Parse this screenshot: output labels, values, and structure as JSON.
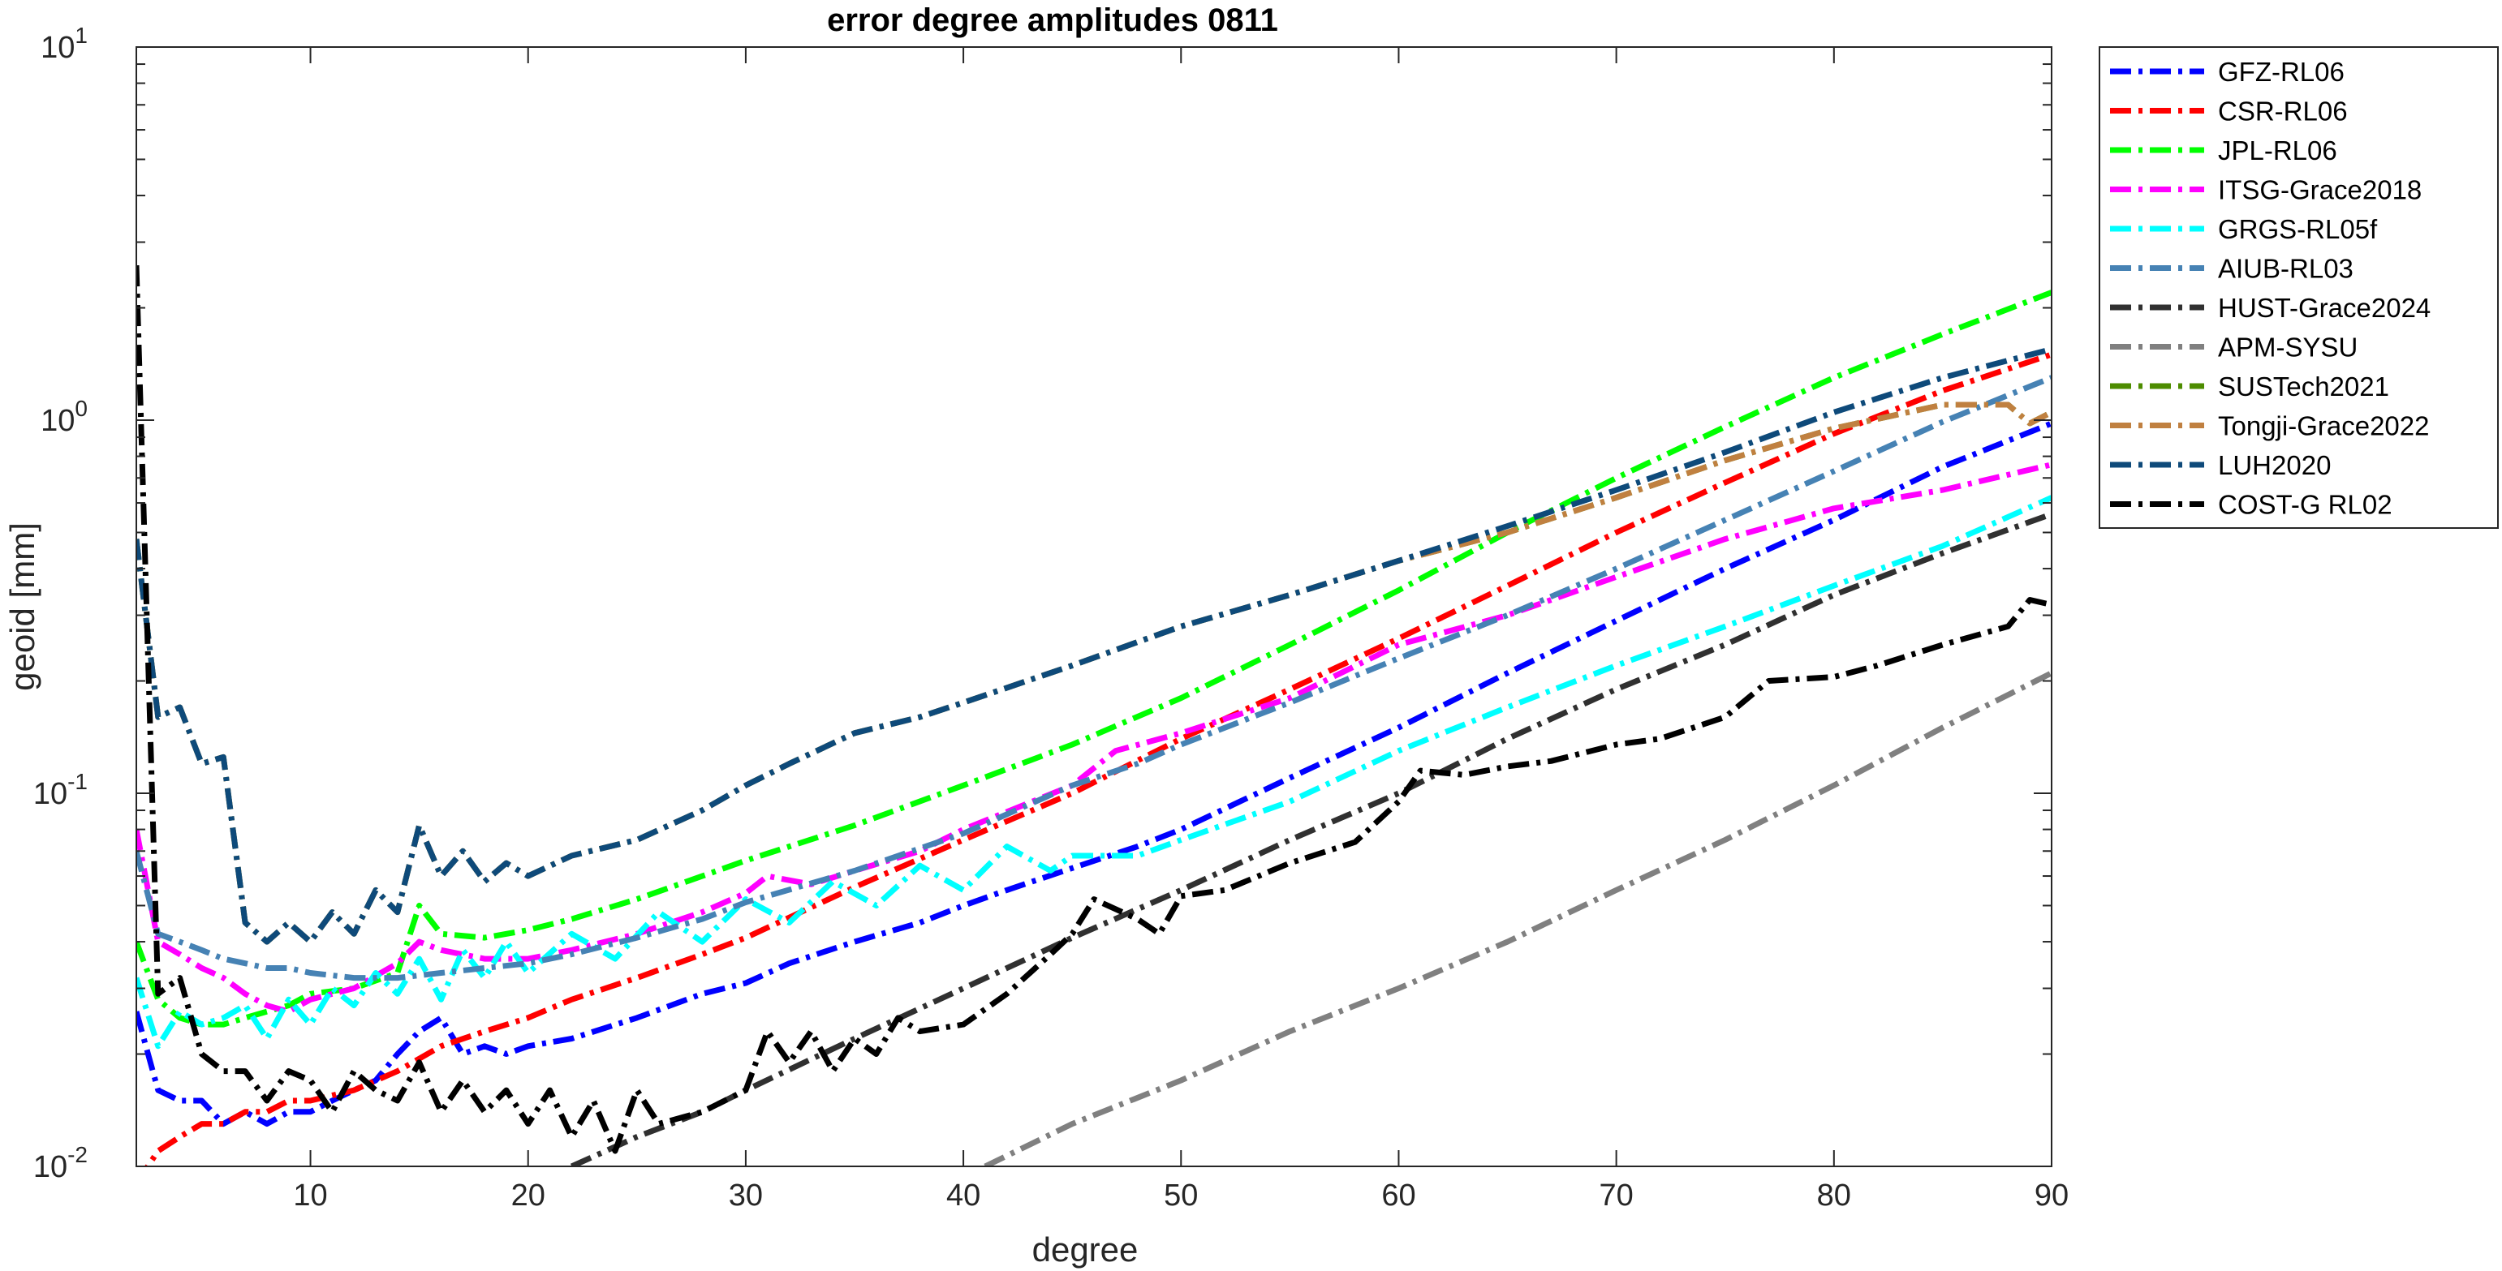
{
  "chart_data": {
    "type": "line",
    "title": "error degree amplitudes 0811",
    "xlabel": "degree",
    "ylabel": "geoid [mm]",
    "xlim": [
      2,
      90
    ],
    "ylim": [
      0.01,
      10
    ],
    "yscale": "log",
    "grid": false,
    "legend_position": "outside-right-top",
    "x_ticks": [
      10,
      20,
      30,
      40,
      50,
      60,
      70,
      80,
      90
    ],
    "x_tick_labels": [
      "10",
      "20",
      "30",
      "40",
      "50",
      "60",
      "70",
      "80",
      "90"
    ],
    "y_ticks": [
      0.01,
      0.1,
      1,
      10
    ],
    "y_tick_bases": [
      "10",
      "10",
      "10",
      "10"
    ],
    "y_tick_exponents": [
      "-2",
      "-1",
      "0",
      "1"
    ],
    "series": [
      {
        "name": "GFZ-RL06",
        "color": "#0000ff",
        "x": [
          2,
          3,
          4,
          5,
          6,
          7,
          8,
          9,
          10,
          11,
          12,
          13,
          14,
          15,
          16,
          17,
          18,
          19,
          20,
          22,
          25,
          28,
          30,
          32,
          35,
          38,
          40,
          42,
          45,
          48,
          50,
          55,
          60,
          65,
          70,
          75,
          80,
          85,
          90
        ],
        "y": [
          0.026,
          0.016,
          0.015,
          0.015,
          0.013,
          0.014,
          0.013,
          0.014,
          0.014,
          0.015,
          0.016,
          0.017,
          0.02,
          0.023,
          0.025,
          0.02,
          0.021,
          0.02,
          0.021,
          0.022,
          0.025,
          0.029,
          0.031,
          0.035,
          0.04,
          0.045,
          0.05,
          0.055,
          0.063,
          0.072,
          0.08,
          0.11,
          0.15,
          0.21,
          0.29,
          0.4,
          0.54,
          0.75,
          0.98
        ]
      },
      {
        "name": "CSR-RL06",
        "color": "#ff0000",
        "x": [
          2,
          3,
          4,
          5,
          6,
          7,
          8,
          9,
          10,
          12,
          14,
          16,
          18,
          20,
          22,
          25,
          28,
          30,
          35,
          40,
          45,
          50,
          55,
          60,
          65,
          70,
          75,
          80,
          85,
          90
        ],
        "y": [
          0.009,
          0.011,
          0.012,
          0.013,
          0.013,
          0.014,
          0.014,
          0.015,
          0.015,
          0.016,
          0.018,
          0.021,
          0.023,
          0.025,
          0.028,
          0.032,
          0.037,
          0.041,
          0.056,
          0.075,
          0.1,
          0.14,
          0.19,
          0.26,
          0.36,
          0.5,
          0.68,
          0.92,
          1.2,
          1.5
        ]
      },
      {
        "name": "JPL-RL06",
        "color": "#00ff00",
        "x": [
          2,
          3,
          4,
          5,
          6,
          7,
          8,
          9,
          10,
          12,
          14,
          15,
          16,
          18,
          20,
          22,
          25,
          28,
          30,
          35,
          40,
          45,
          50,
          55,
          60,
          65,
          70,
          75,
          80,
          85,
          90
        ],
        "y": [
          0.04,
          0.028,
          0.025,
          0.024,
          0.024,
          0.025,
          0.026,
          0.027,
          0.029,
          0.03,
          0.033,
          0.05,
          0.042,
          0.041,
          0.043,
          0.046,
          0.052,
          0.06,
          0.066,
          0.082,
          0.105,
          0.135,
          0.18,
          0.25,
          0.35,
          0.5,
          0.7,
          0.96,
          1.3,
          1.7,
          2.2
        ]
      },
      {
        "name": "ITSG-Grace2018",
        "color": "#ff00ff",
        "x": [
          2,
          3,
          4,
          5,
          6,
          7,
          8,
          9,
          10,
          12,
          14,
          15,
          16,
          18,
          20,
          22,
          25,
          28,
          30,
          31,
          33,
          35,
          38,
          40,
          45,
          47,
          50,
          55,
          60,
          65,
          70,
          75,
          80,
          85,
          90
        ],
        "y": [
          0.08,
          0.04,
          0.037,
          0.034,
          0.032,
          0.029,
          0.027,
          0.026,
          0.028,
          0.03,
          0.035,
          0.04,
          0.038,
          0.036,
          0.036,
          0.038,
          0.042,
          0.048,
          0.054,
          0.06,
          0.057,
          0.062,
          0.07,
          0.08,
          0.105,
          0.13,
          0.145,
          0.18,
          0.25,
          0.3,
          0.38,
          0.48,
          0.58,
          0.65,
          0.76
        ]
      },
      {
        "name": "GRGS-RL05f",
        "color": "#00ffff",
        "x": [
          2,
          3,
          4,
          5,
          6,
          7,
          8,
          9,
          10,
          11,
          12,
          13,
          14,
          15,
          16,
          17,
          18,
          19,
          20,
          22,
          24,
          26,
          28,
          30,
          32,
          34,
          36,
          38,
          40,
          42,
          44,
          45,
          48,
          50,
          55,
          60,
          65,
          70,
          75,
          80,
          85,
          90
        ],
        "y": [
          0.032,
          0.021,
          0.026,
          0.024,
          0.025,
          0.027,
          0.022,
          0.028,
          0.024,
          0.03,
          0.027,
          0.033,
          0.029,
          0.036,
          0.028,
          0.038,
          0.032,
          0.04,
          0.033,
          0.042,
          0.036,
          0.048,
          0.04,
          0.052,
          0.045,
          0.058,
          0.05,
          0.064,
          0.055,
          0.072,
          0.062,
          0.068,
          0.068,
          0.075,
          0.095,
          0.13,
          0.17,
          0.22,
          0.28,
          0.36,
          0.46,
          0.62
        ]
      },
      {
        "name": "AIUB-RL03",
        "color": "#4682b4",
        "x": [
          2,
          3,
          4,
          5,
          6,
          7,
          8,
          9,
          10,
          12,
          14,
          16,
          18,
          20,
          22,
          25,
          28,
          30,
          35,
          40,
          45,
          48,
          50,
          55,
          60,
          65,
          70,
          75,
          80,
          85,
          90
        ],
        "y": [
          0.07,
          0.042,
          0.04,
          0.038,
          0.036,
          0.035,
          0.034,
          0.034,
          0.033,
          0.032,
          0.032,
          0.033,
          0.034,
          0.035,
          0.037,
          0.041,
          0.046,
          0.051,
          0.062,
          0.078,
          0.105,
          0.12,
          0.135,
          0.175,
          0.23,
          0.3,
          0.4,
          0.54,
          0.73,
          0.99,
          1.3
        ]
      },
      {
        "name": "HUST-Grace2024",
        "color": "#303030",
        "x": [
          22,
          25,
          28,
          30,
          35,
          40,
          45,
          50,
          55,
          60,
          65,
          70,
          75,
          80,
          85,
          90
        ],
        "y": [
          0.01,
          0.012,
          0.014,
          0.016,
          0.022,
          0.03,
          0.041,
          0.055,
          0.075,
          0.1,
          0.14,
          0.19,
          0.25,
          0.34,
          0.44,
          0.56
        ]
      },
      {
        "name": "APM-SYSU",
        "color": "#808080",
        "x": [
          41,
          45,
          50,
          55,
          60,
          65,
          70,
          75,
          80,
          85,
          90
        ],
        "y": [
          0.01,
          0.013,
          0.017,
          0.023,
          0.03,
          0.04,
          0.055,
          0.075,
          0.105,
          0.15,
          0.21
        ]
      },
      {
        "name": "SUSTech2021",
        "color": "#4d8c00",
        "x": [
          2,
          3,
          4,
          5,
          6,
          7,
          8,
          9,
          10,
          11,
          12,
          13,
          14,
          15,
          16,
          17,
          18,
          19,
          20,
          22,
          25,
          28,
          30,
          32,
          35,
          38,
          40,
          45,
          50,
          55,
          60,
          65,
          70,
          75,
          80,
          85,
          88,
          89,
          90
        ],
        "y": [
          0.48,
          0.16,
          0.17,
          0.12,
          0.125,
          0.045,
          0.04,
          0.045,
          0.04,
          0.048,
          0.042,
          0.055,
          0.048,
          0.082,
          0.06,
          0.07,
          0.058,
          0.065,
          0.06,
          0.068,
          0.075,
          0.09,
          0.105,
          0.12,
          0.145,
          0.16,
          0.175,
          0.22,
          0.28,
          0.34,
          0.42,
          0.5,
          0.62,
          0.78,
          0.95,
          1.1,
          1.1,
          0.98,
          1.05
        ]
      },
      {
        "name": "Tongji-Grace2022",
        "color": "#c08040",
        "x": [
          2,
          3,
          4,
          5,
          6,
          7,
          8,
          9,
          10,
          11,
          12,
          13,
          14,
          15,
          16,
          17,
          18,
          19,
          20,
          22,
          25,
          28,
          30,
          32,
          35,
          38,
          40,
          45,
          50,
          55,
          60,
          65,
          70,
          75,
          80,
          85,
          88,
          89,
          90
        ],
        "y": [
          0.48,
          0.16,
          0.17,
          0.12,
          0.125,
          0.045,
          0.04,
          0.045,
          0.04,
          0.048,
          0.042,
          0.055,
          0.048,
          0.082,
          0.06,
          0.07,
          0.058,
          0.065,
          0.06,
          0.068,
          0.075,
          0.09,
          0.105,
          0.12,
          0.145,
          0.16,
          0.175,
          0.22,
          0.28,
          0.34,
          0.42,
          0.5,
          0.62,
          0.78,
          0.95,
          1.1,
          1.1,
          0.98,
          1.05
        ]
      },
      {
        "name": "LUH2020",
        "color": "#0e4a7a",
        "x": [
          2,
          3,
          4,
          5,
          6,
          7,
          8,
          9,
          10,
          11,
          12,
          13,
          14,
          15,
          16,
          17,
          18,
          19,
          20,
          22,
          25,
          28,
          30,
          32,
          35,
          38,
          40,
          45,
          50,
          55,
          60,
          65,
          70,
          75,
          80,
          85,
          90
        ],
        "y": [
          0.48,
          0.16,
          0.17,
          0.12,
          0.125,
          0.045,
          0.04,
          0.045,
          0.04,
          0.048,
          0.042,
          0.055,
          0.048,
          0.082,
          0.06,
          0.07,
          0.058,
          0.065,
          0.06,
          0.068,
          0.075,
          0.09,
          0.105,
          0.12,
          0.145,
          0.16,
          0.175,
          0.22,
          0.28,
          0.34,
          0.42,
          0.52,
          0.65,
          0.82,
          1.05,
          1.3,
          1.55
        ]
      },
      {
        "name": "COST-G RL02",
        "color": "#000000",
        "x": [
          2,
          3,
          4,
          5,
          6,
          7,
          8,
          9,
          10,
          11,
          12,
          13,
          14,
          15,
          16,
          17,
          18,
          19,
          20,
          21,
          22,
          23,
          24,
          25,
          26,
          28,
          30,
          31,
          32,
          33,
          34,
          35,
          36,
          37,
          38,
          40,
          42,
          44,
          45,
          46,
          48,
          49,
          50,
          52,
          55,
          58,
          60,
          61,
          63,
          65,
          67,
          70,
          72,
          75,
          77,
          80,
          82,
          85,
          88,
          89,
          90
        ],
        "y": [
          2.6,
          0.029,
          0.032,
          0.02,
          0.018,
          0.018,
          0.015,
          0.018,
          0.017,
          0.014,
          0.018,
          0.016,
          0.015,
          0.019,
          0.014,
          0.017,
          0.014,
          0.016,
          0.013,
          0.016,
          0.012,
          0.015,
          0.011,
          0.016,
          0.013,
          0.014,
          0.016,
          0.023,
          0.019,
          0.023,
          0.018,
          0.022,
          0.02,
          0.025,
          0.023,
          0.024,
          0.029,
          0.037,
          0.042,
          0.052,
          0.046,
          0.042,
          0.053,
          0.055,
          0.065,
          0.074,
          0.095,
          0.115,
          0.112,
          0.118,
          0.122,
          0.135,
          0.14,
          0.16,
          0.2,
          0.205,
          0.22,
          0.25,
          0.28,
          0.33,
          0.32
        ]
      }
    ]
  }
}
